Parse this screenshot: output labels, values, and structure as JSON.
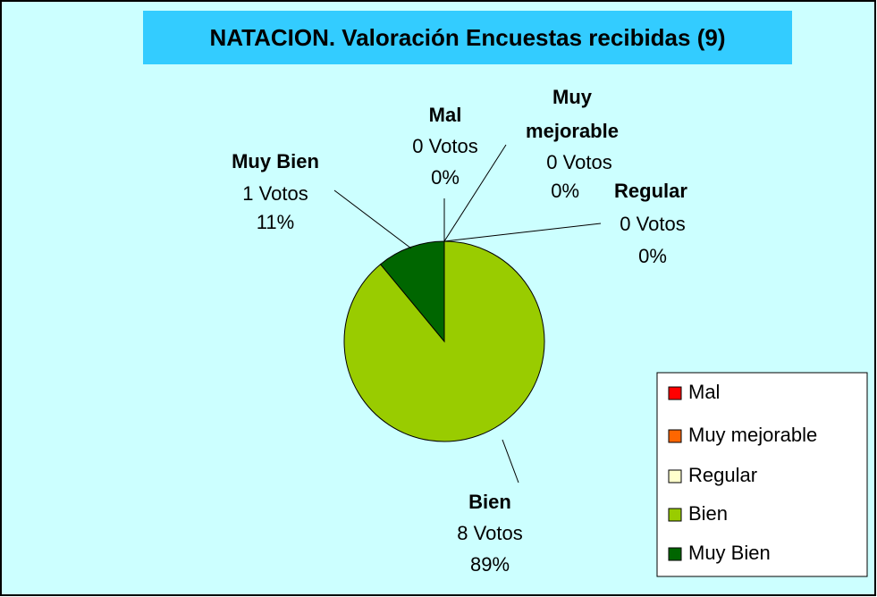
{
  "chart_data": {
    "type": "pie",
    "title": "NATACION. Valoración Encuestas recibidas (9)",
    "categories": [
      "Mal",
      "Muy mejorable",
      "Regular",
      "Bien",
      "Muy Bien"
    ],
    "values": [
      0,
      0,
      0,
      89,
      11
    ],
    "value_labels": [
      "0%",
      "0%",
      "0%",
      "89%",
      "11%"
    ],
    "vote_labels": [
      "0 Votos",
      "0 Votos",
      "0 Votos",
      "8 Votos",
      "1 Votos"
    ],
    "colors": [
      "#ff0000",
      "#ff6600",
      "#ffffcc",
      "#99cc00",
      "#006600"
    ],
    "legend": "right"
  }
}
